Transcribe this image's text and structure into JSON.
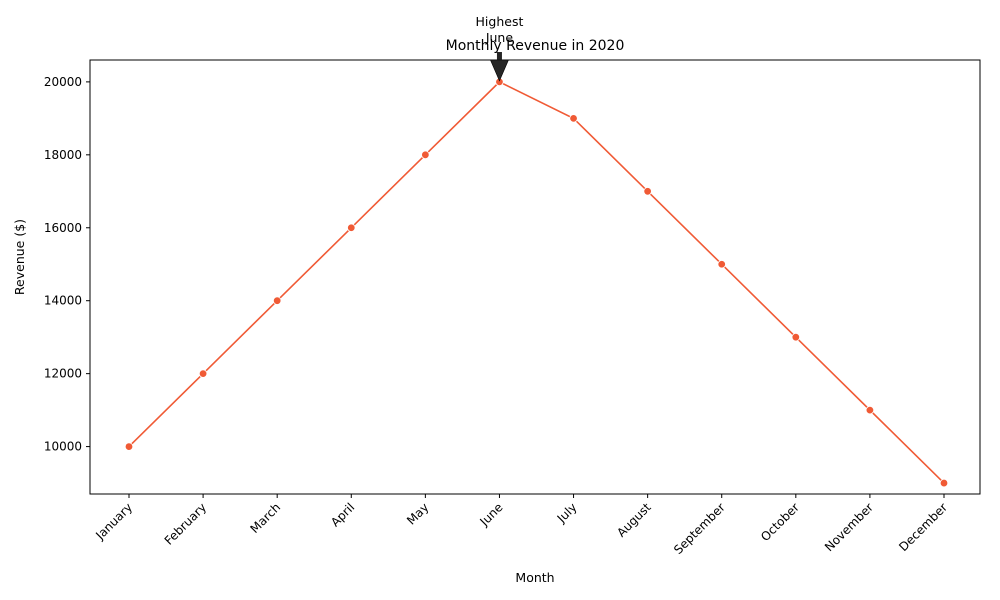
{
  "chart_data": {
    "type": "line",
    "title": "Monthly Revenue in 2020",
    "xlabel": "Month",
    "ylabel": "Revenue ($)",
    "categories": [
      "January",
      "February",
      "March",
      "April",
      "May",
      "June",
      "July",
      "August",
      "September",
      "October",
      "November",
      "December"
    ],
    "series": [
      {
        "values": [
          10000,
          12000,
          14000,
          16000,
          18000,
          20000,
          19000,
          17000,
          15000,
          13000,
          11000,
          9000
        ],
        "color": "#f05a35"
      }
    ],
    "ylim": [
      8700,
      20600
    ],
    "yticks": [
      10000,
      12000,
      14000,
      16000,
      18000,
      20000
    ],
    "grid": false,
    "annotation": {
      "lines": [
        "Highest",
        "June"
      ],
      "target_category": "June",
      "target_value": 20000,
      "arrow_color": "#262626"
    }
  }
}
